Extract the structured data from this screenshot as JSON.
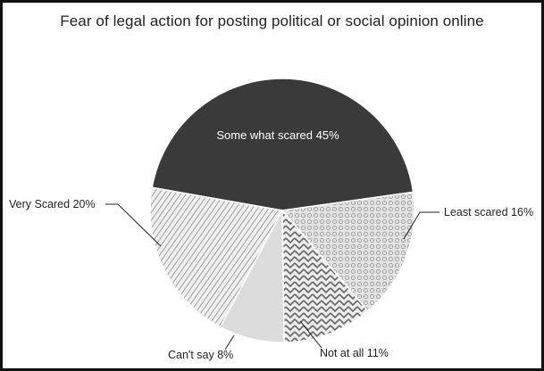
{
  "chart_data": {
    "type": "pie",
    "title": "Fear of legal action for posting political or social opinion online",
    "slices": [
      {
        "label": "Some what scared 45%",
        "value": 45,
        "pattern": "solid-dark"
      },
      {
        "label": "Least scared 16%",
        "value": 16,
        "pattern": "dots"
      },
      {
        "label": "Not at all 11%",
        "value": 11,
        "pattern": "zigzag"
      },
      {
        "label": "Can't say 8%",
        "value": 8,
        "pattern": "solid-light"
      },
      {
        "label": "Very Scared 20%",
        "value": 20,
        "pattern": "diagonal-stripes"
      }
    ]
  }
}
